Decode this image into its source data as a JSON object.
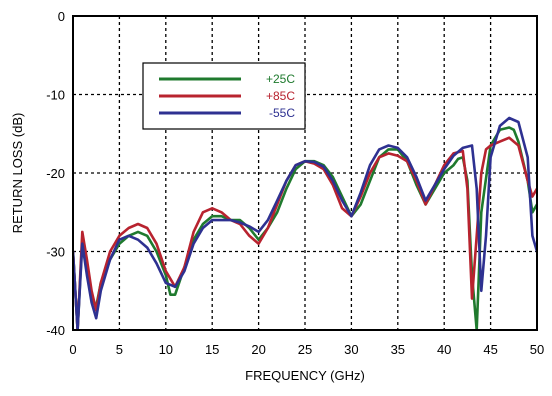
{
  "chart_data": {
    "type": "line",
    "xlabel": "FREQUENCY (GHz)",
    "ylabel": "RETURN LOSS (dB)",
    "xlim": [
      0,
      50
    ],
    "ylim": [
      -40,
      0
    ],
    "x_ticks": [
      0,
      5,
      10,
      15,
      20,
      25,
      30,
      35,
      40,
      45,
      50
    ],
    "y_ticks": [
      0,
      -10,
      -20,
      -30,
      -40
    ],
    "grid": true,
    "legend_position": "top-left",
    "series": [
      {
        "name": "+25C",
        "color": "#1f7a2e",
        "x": [
          0,
          0.5,
          1,
          1.5,
          2,
          2.5,
          3,
          4,
          5,
          6,
          7,
          8,
          9,
          10,
          10.5,
          11,
          12,
          13,
          14,
          15,
          16,
          17,
          18,
          19,
          20,
          21,
          22,
          23,
          24,
          25,
          26,
          27,
          28,
          29,
          30,
          31,
          32,
          33,
          34,
          35,
          36,
          37,
          38,
          39,
          40,
          41,
          41.5,
          42,
          42.5,
          43,
          43.5,
          44,
          45,
          46,
          47,
          47.5,
          48,
          49,
          49.5,
          50
        ],
        "values": [
          -30,
          -40,
          -28.5,
          -32,
          -36,
          -37,
          -34,
          -31,
          -29,
          -28,
          -27.5,
          -28,
          -30,
          -33,
          -35.5,
          -35.5,
          -32,
          -28.5,
          -26.5,
          -25.5,
          -25.5,
          -26,
          -26,
          -27,
          -28.5,
          -27,
          -25,
          -22,
          -19.5,
          -18.5,
          -18.5,
          -19,
          -20.5,
          -23,
          -25.5,
          -24,
          -21,
          -18,
          -17,
          -17,
          -18.5,
          -21.5,
          -24,
          -22,
          -20,
          -19,
          -18.2,
          -18,
          -21,
          -33,
          -40,
          -25,
          -16.5,
          -14.5,
          -14.2,
          -14.5,
          -16,
          -21,
          -25,
          -24
        ]
      },
      {
        "name": "+85C",
        "color": "#b8232f",
        "x": [
          0,
          0.5,
          1,
          1.5,
          2,
          2.5,
          3,
          4,
          5,
          6,
          7,
          8,
          9,
          10,
          11,
          12,
          13,
          14,
          15,
          16,
          17,
          18,
          19,
          20,
          21,
          22,
          23,
          24,
          25,
          26,
          27,
          28,
          29,
          30,
          31,
          32,
          33,
          34,
          35,
          36,
          37,
          38,
          39,
          40,
          41,
          42,
          42.5,
          43,
          43.5,
          44,
          44.5,
          45,
          46,
          47,
          48,
          49,
          49.5,
          50
        ],
        "values": [
          -30,
          -40,
          -27.5,
          -31,
          -35,
          -37.5,
          -34,
          -30,
          -28,
          -27,
          -26.5,
          -27,
          -29,
          -32.5,
          -34.5,
          -32,
          -27.5,
          -25,
          -24.5,
          -25,
          -26,
          -26.5,
          -28,
          -29,
          -27,
          -24,
          -21,
          -19,
          -18.5,
          -18.8,
          -19.5,
          -21.5,
          -24.5,
          -25.5,
          -23,
          -20,
          -18,
          -17.5,
          -17.8,
          -18.5,
          -21,
          -24,
          -21.5,
          -19,
          -17.5,
          -17.2,
          -22,
          -36,
          -28,
          -20,
          -17,
          -16.5,
          -16,
          -15.5,
          -16.5,
          -21,
          -23,
          -22
        ]
      },
      {
        "name": "-55C",
        "color": "#2e3191",
        "x": [
          0,
          0.5,
          1,
          1.5,
          2,
          2.5,
          3,
          4,
          5,
          6,
          7,
          8,
          9,
          10,
          11,
          12,
          13,
          14,
          15,
          16,
          17,
          18,
          19,
          20,
          21,
          22,
          23,
          24,
          25,
          26,
          27,
          28,
          29,
          30,
          31,
          32,
          33,
          34,
          35,
          36,
          37,
          38,
          39,
          40,
          41,
          42,
          43,
          43.5,
          44,
          44.5,
          45,
          46,
          47,
          48,
          49,
          49.5,
          50
        ],
        "values": [
          -30,
          -40,
          -29,
          -33,
          -36.5,
          -38.5,
          -35,
          -31,
          -28.5,
          -28,
          -28.5,
          -29.5,
          -31.5,
          -34,
          -34.5,
          -32.5,
          -29,
          -27,
          -26,
          -26,
          -26,
          -26.3,
          -26.8,
          -27.5,
          -26,
          -23.5,
          -21,
          -19,
          -18.5,
          -18.6,
          -19.2,
          -21,
          -23.5,
          -25.5,
          -22.5,
          -19,
          -17,
          -16.5,
          -16.8,
          -18,
          -20.5,
          -23.5,
          -21.5,
          -19.5,
          -17.8,
          -16.8,
          -16.5,
          -22,
          -35,
          -28,
          -18,
          -14,
          -13,
          -13.5,
          -18,
          -28,
          -30
        ]
      }
    ]
  }
}
